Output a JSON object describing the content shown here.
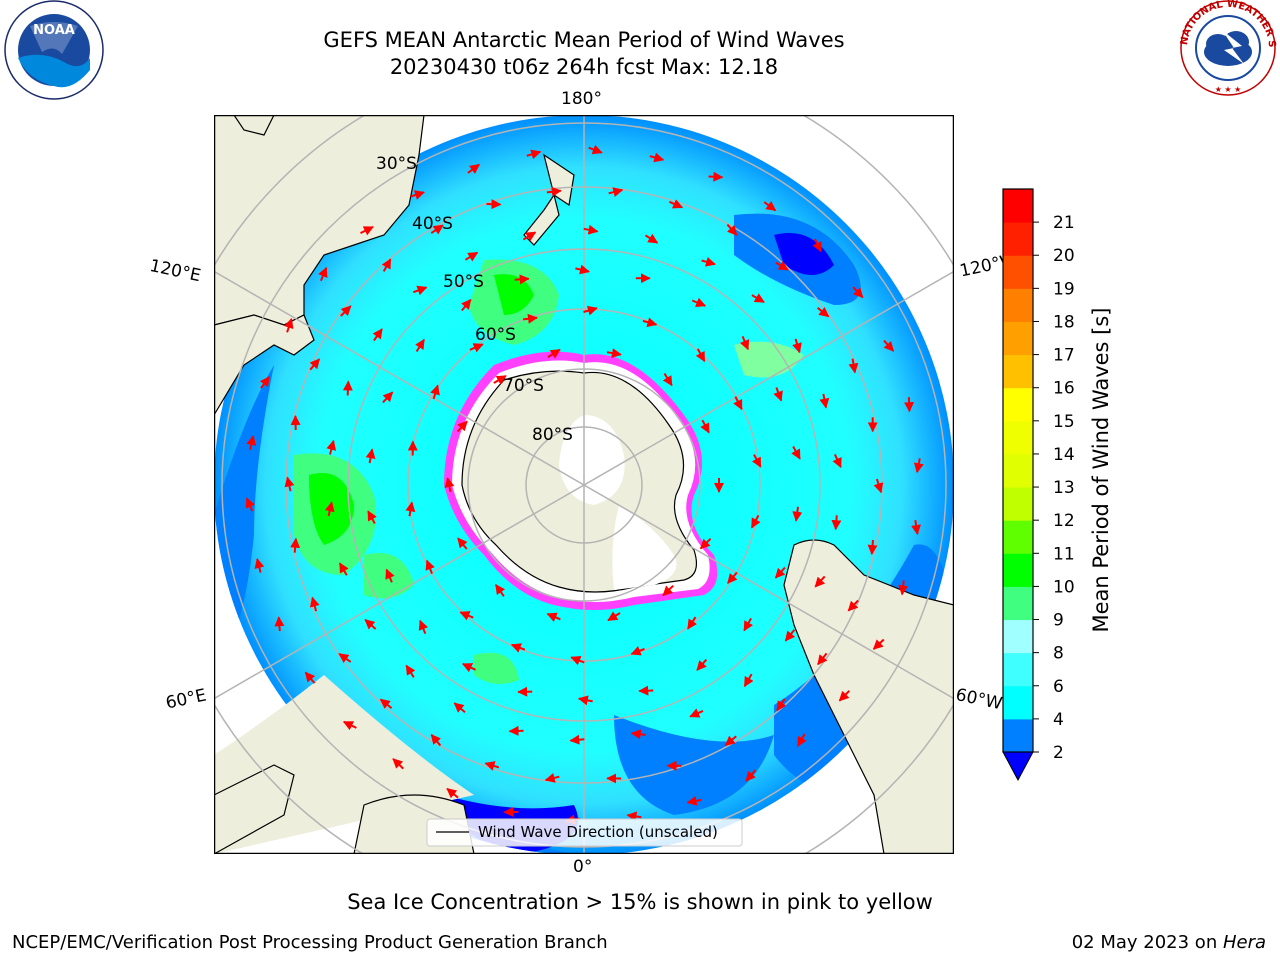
{
  "header": {
    "title_line1": "GEFS MEAN Antarctic Mean Period of Wind Waves",
    "title_line2": "20230430 t06z 264h fcst   Max: 12.18"
  },
  "logos": {
    "left": {
      "text": "NOAA",
      "ring": "NATIONAL OCEANIC AND ATMOSPHERIC ADMINISTRATION · U.S. DEPARTMENT OF COMMERCE"
    },
    "right": {
      "ring": "NATIONAL WEATHER SERVICE"
    }
  },
  "map": {
    "longitude_labels": {
      "top": "180°",
      "bottom": "0°",
      "upper_left": "120°E",
      "lower_left": "60°E",
      "upper_right": "120°W",
      "lower_right": "60°W"
    },
    "latitude_labels": [
      "30°S",
      "40°S",
      "50°S",
      "60°S",
      "70°S",
      "80°S"
    ],
    "legend": "Wind Wave Direction (unscaled)",
    "colors": {
      "land": "#eeeedc",
      "ocean_low": "#0090ff",
      "ocean_mid": "#00ffff",
      "ocean_high": "#50ff40",
      "ice": "#ffffff",
      "ice_edge": "#ff40ff",
      "arrow": "#ff0000",
      "grid": "#b4b4b4"
    }
  },
  "colorbar": {
    "label": "Mean Period of Wind Waves [s]",
    "ticks": [
      "2",
      "4",
      "6",
      "8",
      "9",
      "10",
      "11",
      "12",
      "13",
      "14",
      "15",
      "16",
      "17",
      "18",
      "19",
      "20",
      "21"
    ],
    "bands": [
      {
        "lo": "2",
        "hi": "4",
        "color": "#0080ff"
      },
      {
        "lo": "4",
        "hi": "6",
        "color": "#00ffff"
      },
      {
        "lo": "6",
        "hi": "8",
        "color": "#40ffff"
      },
      {
        "lo": "8",
        "hi": "9",
        "color": "#a0ffff"
      },
      {
        "lo": "9",
        "hi": "10",
        "color": "#40ff80"
      },
      {
        "lo": "10",
        "hi": "11",
        "color": "#00ff00"
      },
      {
        "lo": "11",
        "hi": "12",
        "color": "#60ff00"
      },
      {
        "lo": "12",
        "hi": "13",
        "color": "#c0ff00"
      },
      {
        "lo": "13",
        "hi": "14",
        "color": "#e0ff00"
      },
      {
        "lo": "14",
        "hi": "15",
        "color": "#f0ff00"
      },
      {
        "lo": "15",
        "hi": "16",
        "color": "#ffff00"
      },
      {
        "lo": "16",
        "hi": "17",
        "color": "#ffc000"
      },
      {
        "lo": "17",
        "hi": "18",
        "color": "#ffa000"
      },
      {
        "lo": "18",
        "hi": "19",
        "color": "#ff8000"
      },
      {
        "lo": "19",
        "hi": "20",
        "color": "#ff5000"
      },
      {
        "lo": "20",
        "hi": "21",
        "color": "#ff2000"
      },
      {
        "lo": "21",
        "hi": "",
        "color": "#ff0000"
      }
    ],
    "under_color": "#0000ff"
  },
  "caption": "Sea Ice Concentration > 15% is shown in pink to yellow",
  "footer": {
    "left": "NCEP/EMC/Verification Post Processing Product Generation Branch",
    "date": "02 May 2023 on ",
    "host": "Hera"
  }
}
